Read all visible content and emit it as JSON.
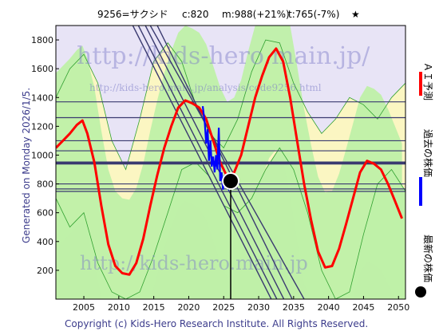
{
  "header": {
    "ticker": "9256=サクシド",
    "current": "c:820",
    "max_label": "m:988(+21%)",
    "target_label": "t:765(-7%)",
    "star": "★"
  },
  "side_label": "Generated on Monday 2026/1/5.",
  "footer": "Copyright (c) Kids-Hero Research Institute. All Rights Reserved.",
  "watermarks": {
    "top": "http://kids-hero.main.jp/",
    "mid": "http://kids-hero.main.jp/analysis/code9256.html",
    "bottom": "http://kids-hero.main.jp"
  },
  "legend": [
    {
      "label": "ＡＩ予測",
      "color": "#ff0000"
    },
    {
      "label": "過去の株価",
      "color": "#0000ff"
    },
    {
      "label": "最新の株価",
      "color": "#000000"
    }
  ],
  "colors": {
    "prediction": "#ff0000",
    "history": "#0000ff",
    "green_fill": "#bff0a8",
    "green_line": "#30a030",
    "yellow_fill": "#fbf6c2",
    "lilac_fill": "#e8e4f6",
    "level_line": "#3a3a70"
  },
  "chart_data": {
    "type": "line",
    "title": "9256=サクシド    c:820   m:988(+21%)   t:765(-7%)   ★",
    "xlabel": "",
    "ylabel": "",
    "xlim": [
      2001,
      2051
    ],
    "ylim": [
      0,
      1900
    ],
    "x_ticks": [
      2005,
      2010,
      2015,
      2020,
      2025,
      2030,
      2035,
      2040,
      2045,
      2050
    ],
    "y_ticks": [
      200,
      400,
      600,
      800,
      1000,
      1200,
      1400,
      1600,
      1800
    ],
    "horizontal_levels": [
      1370,
      1260,
      1100,
      1030,
      950,
      940,
      800,
      765,
      748
    ],
    "trend_lines": [
      {
        "x": [
          2014.5,
          2036.5
        ],
        "y": [
          1900,
          0
        ]
      },
      {
        "x": [
          2015.5,
          2034.8
        ],
        "y": [
          1900,
          0
        ]
      },
      {
        "x": [
          2013.8,
          2033.6
        ],
        "y": [
          1900,
          0
        ]
      },
      {
        "x": [
          2012.8,
          2032.6
        ],
        "y": [
          1900,
          0
        ]
      },
      {
        "x": [
          2012.0,
          2031.8
        ],
        "y": [
          1900,
          0
        ]
      }
    ],
    "latest_point": {
      "x": 2026.0,
      "y": 820
    },
    "series": [
      {
        "name": "ＡＩ予測",
        "color": "#ff0000",
        "x": [
          2001,
          2002,
          2003,
          2004,
          2004.8,
          2005.5,
          2006.5,
          2007.5,
          2008.5,
          2009.5,
          2010.5,
          2011.5,
          2012.5,
          2013.5,
          2014.5,
          2015.5,
          2016.5,
          2017.5,
          2018.5,
          2019.5,
          2020.5,
          2021.5,
          2022.5,
          2023.5,
          2024.5,
          2025.5,
          2026.5,
          2027.5,
          2028.5,
          2029.5,
          2030.5,
          2031.5,
          2032.5,
          2033.5,
          2034.5,
          2035.5,
          2036.5,
          2037.5,
          2038.5,
          2039.5,
          2040.5,
          2041.5,
          2042.5,
          2043.5,
          2044.5,
          2045.5,
          2046.5,
          2047.5,
          2048.5,
          2049.5,
          2050.5
        ],
        "y": [
          1050,
          1100,
          1150,
          1210,
          1240,
          1150,
          950,
          650,
          380,
          230,
          180,
          170,
          250,
          420,
          650,
          860,
          1050,
          1200,
          1330,
          1380,
          1360,
          1330,
          1250,
          1100,
          950,
          850,
          880,
          1000,
          1200,
          1400,
          1550,
          1680,
          1740,
          1650,
          1400,
          1100,
          800,
          550,
          330,
          220,
          230,
          350,
          520,
          700,
          880,
          960,
          940,
          900,
          800,
          680,
          560
        ]
      },
      {
        "name": "過去の株価",
        "color": "#0000ff",
        "x": [
          2022.0,
          2022.3,
          2022.5,
          2022.7,
          2022.9,
          2023.1,
          2023.3,
          2023.5,
          2023.7,
          2023.9,
          2024.1,
          2024.3,
          2024.5,
          2024.7,
          2024.9,
          2025.1,
          2025.3,
          2025.5,
          2025.7,
          2026.0
        ],
        "y": [
          1340,
          1220,
          1080,
          1180,
          960,
          1100,
          920,
          990,
          880,
          1000,
          900,
          1190,
          820,
          880,
          760,
          860,
          790,
          800,
          770,
          820
        ]
      },
      {
        "name": "",
        "color": "#30a030",
        "x": [
          2001,
          2003,
          2005,
          2007,
          2009,
          2011,
          2013,
          2015,
          2017,
          2019,
          2021,
          2023,
          2025,
          2027,
          2029,
          2031,
          2033,
          2035,
          2037,
          2039,
          2041,
          2043,
          2045,
          2047,
          2049,
          2051
        ],
        "y": [
          1400,
          1600,
          1700,
          1500,
          1100,
          900,
          1250,
          1650,
          1780,
          1650,
          1350,
          1150,
          1050,
          1250,
          1580,
          1800,
          1780,
          1500,
          1300,
          1150,
          1250,
          1400,
          1350,
          1250,
          1400,
          1500
        ]
      },
      {
        "name": "",
        "color": "#30a030",
        "x": [
          2001,
          2003,
          2005,
          2007,
          2009,
          2011,
          2013,
          2015,
          2017,
          2019,
          2021,
          2023,
          2025,
          2027,
          2029,
          2031,
          2033,
          2035,
          2037,
          2039,
          2041,
          2043,
          2045,
          2047,
          2049,
          2051
        ],
        "y": [
          700,
          500,
          600,
          250,
          50,
          0,
          50,
          300,
          600,
          900,
          950,
          850,
          650,
          600,
          700,
          900,
          1050,
          900,
          600,
          200,
          0,
          50,
          450,
          800,
          900,
          750
        ]
      }
    ]
  }
}
